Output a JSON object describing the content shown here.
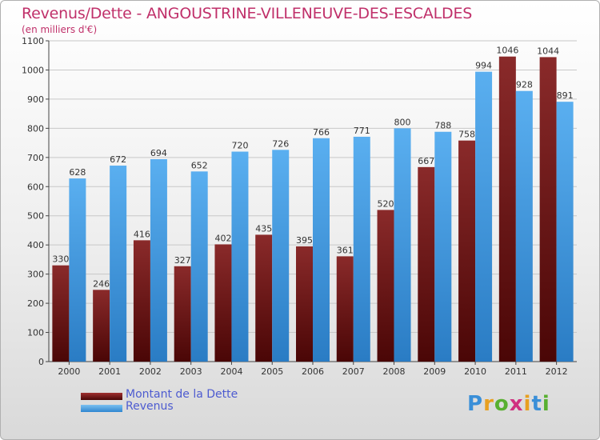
{
  "chart_data": {
    "type": "bar",
    "title": "Revenus/Dette - ANGOUSTRINE-VILLENEUVE-DES-ESCALDES",
    "subtitle": "(en milliers d'€)",
    "categories": [
      "2000",
      "2001",
      "2002",
      "2003",
      "2004",
      "2005",
      "2006",
      "2007",
      "2008",
      "2009",
      "2010",
      "2011",
      "2012"
    ],
    "series": [
      {
        "name": "Montant de la Dette",
        "color": "#7a1414",
        "values": [
          330,
          246,
          416,
          327,
          402,
          435,
          395,
          361,
          520,
          667,
          758,
          1046,
          1044
        ]
      },
      {
        "name": "Revenus",
        "color": "#4aa3e6",
        "values": [
          628,
          672,
          694,
          652,
          720,
          726,
          766,
          771,
          800,
          788,
          994,
          928,
          891
        ]
      }
    ],
    "ylim": [
      0,
      1100
    ],
    "yticks": [
      0,
      100,
      200,
      300,
      400,
      500,
      600,
      700,
      800,
      900,
      1000,
      1100
    ],
    "grid": true,
    "legend": "bottom-left"
  },
  "logo": {
    "letters": [
      "P",
      "r",
      "o",
      "x",
      "i",
      "t",
      "i"
    ],
    "colors": [
      "#3a8fd8",
      "#e8a020",
      "#58b030",
      "#d03080",
      "#e8a020",
      "#3a8fd8",
      "#58b030"
    ]
  }
}
